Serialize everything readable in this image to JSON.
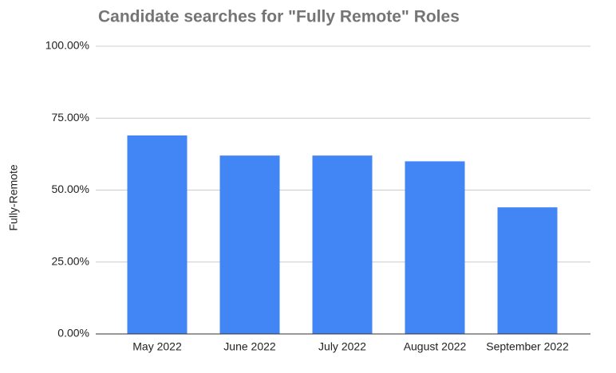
{
  "chart_data": {
    "type": "bar",
    "title": "Candidate searches for \"Fully Remote\" Roles",
    "y_label": "Fully-Remote",
    "categories": [
      "May 2022",
      "June 2022",
      "July 2022",
      "August 2022",
      "September 2022"
    ],
    "values": [
      69,
      62,
      62,
      60,
      44
    ],
    "color": "#4285f4",
    "ylim": [
      0,
      100
    ],
    "yticks": [
      {
        "value": 0,
        "label": "0.00%"
      },
      {
        "value": 25,
        "label": "25.00%"
      },
      {
        "value": 50,
        "label": "50.00%"
      },
      {
        "value": 75,
        "label": "75.00%"
      },
      {
        "value": 100,
        "label": "100.00%"
      }
    ],
    "grid": true
  }
}
